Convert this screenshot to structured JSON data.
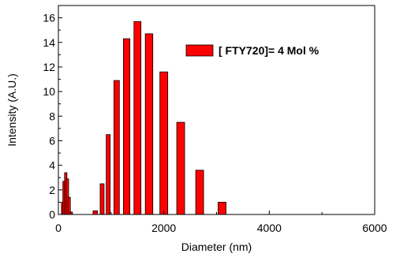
{
  "chart_data": {
    "type": "bar",
    "xlabel": "Diameter (nm)",
    "ylabel": "Intensity (A.U.)",
    "xlim": [
      0,
      6000
    ],
    "ylim": [
      0,
      17
    ],
    "x_ticks": [
      0,
      2000,
      4000,
      6000
    ],
    "y_ticks": [
      0,
      2,
      4,
      6,
      8,
      10,
      12,
      14,
      16
    ],
    "grid": false,
    "legend_position": "top-right",
    "bar_color": "#ff0000",
    "bar_edge_color": "#000000",
    "series": [
      {
        "name": "[ FTY720]= 4 Mol %",
        "points": [
          {
            "x": 80,
            "y": 1.0
          },
          {
            "x": 108,
            "y": 2.7
          },
          {
            "x": 140,
            "y": 3.4
          },
          {
            "x": 172,
            "y": 2.9
          },
          {
            "x": 205,
            "y": 1.4
          },
          {
            "x": 245,
            "y": 0.2
          },
          {
            "x": 700,
            "y": 0.3
          },
          {
            "x": 830,
            "y": 2.5
          },
          {
            "x": 945,
            "y": 6.5
          },
          {
            "x": 1105,
            "y": 10.9
          },
          {
            "x": 1295,
            "y": 14.3
          },
          {
            "x": 1500,
            "y": 15.7
          },
          {
            "x": 1720,
            "y": 14.7
          },
          {
            "x": 2000,
            "y": 11.6
          },
          {
            "x": 2320,
            "y": 7.5
          },
          {
            "x": 2680,
            "y": 3.6
          },
          {
            "x": 3105,
            "y": 1.0
          }
        ]
      }
    ]
  }
}
